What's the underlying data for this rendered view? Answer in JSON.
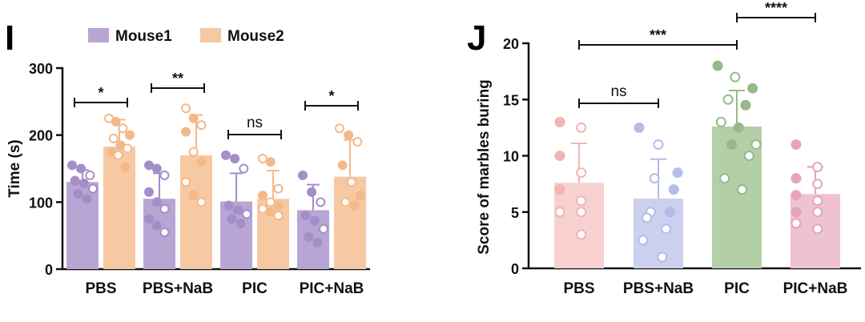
{
  "panels": {
    "left_letter": "I",
    "right_letter": "J"
  },
  "chart_data": [
    {
      "type": "bar",
      "id": "panel-i",
      "categories": [
        "PBS",
        "PBS+NaB",
        "PIC",
        "PIC+NaB"
      ],
      "ylabel": "Time (s)",
      "xlabel": "",
      "ylim": [
        0,
        300
      ],
      "yticks": [
        0,
        100,
        200,
        300
      ],
      "legend": {
        "placement": "top",
        "entries": [
          "Mouse1",
          "Mouse2"
        ]
      },
      "series": [
        {
          "name": "Mouse1",
          "color": "#b8a5d4",
          "dot_color": "#a48ec8",
          "values": [
            130,
            105,
            101,
            88
          ],
          "errors": [
            18,
            38,
            42,
            38
          ],
          "points": [
            [
              155,
              150,
              140,
              132,
              128,
              120,
              112,
              105
            ],
            [
              155,
              150,
              140,
              115,
              100,
              90,
              75,
              65,
              55
            ],
            [
              170,
              165,
              150,
              95,
              88,
              82,
              75,
              68
            ],
            [
              140,
              115,
              100,
              80,
              72,
              60,
              48,
              40
            ]
          ]
        },
        {
          "name": "Mouse2",
          "color": "#f7c9a3",
          "dot_color": "#f4b989",
          "values": [
            183,
            170,
            105,
            138
          ],
          "errors": [
            40,
            60,
            42,
            55
          ],
          "points": [
            [
              225,
              220,
              210,
              200,
              195,
              185,
              180,
              175,
              170,
              152
            ],
            [
              240,
              225,
              215,
              205,
              175,
              160,
              130,
              110,
              100
            ],
            [
              165,
              160,
              120,
              110,
              100,
              95,
              90,
              85,
              80
            ],
            [
              210,
              200,
              190,
              155,
              130,
              110,
              100,
              95
            ]
          ]
        }
      ],
      "significance": [
        "*",
        "**",
        "ns",
        "*"
      ]
    },
    {
      "type": "bar",
      "id": "panel-j",
      "categories": [
        "PBS",
        "PBS+NaB",
        "PIC",
        "PIC+NaB"
      ],
      "ylabel": "Score of marbles buring",
      "xlabel": "",
      "ylim": [
        0,
        20
      ],
      "yticks": [
        0,
        5,
        10,
        15,
        20
      ],
      "values": [
        7.6,
        6.2,
        12.6,
        6.6
      ],
      "errors": [
        3.5,
        3.5,
        3.2,
        2.4
      ],
      "colors": [
        "#f8d0d0",
        "#cbd0ee",
        "#b3cfa8",
        "#eec2d2"
      ],
      "dot_colors": [
        "#f2b4b4",
        "#b4bce8",
        "#95ba8a",
        "#e6a4bb"
      ],
      "points": [
        [
          13,
          12.5,
          10,
          8.5,
          7,
          6,
          5,
          5,
          5,
          3
        ],
        [
          12.5,
          11,
          8.5,
          8,
          7,
          5,
          5,
          4.5,
          3.5,
          2.5,
          1
        ],
        [
          18,
          17,
          16,
          15,
          14.5,
          13,
          12.5,
          11,
          11,
          10,
          8,
          7
        ],
        [
          11,
          9,
          8,
          7.5,
          6.5,
          6,
          5,
          5,
          4,
          3.5
        ]
      ],
      "comparisons": [
        {
          "from": 0,
          "to": 1,
          "label": "ns",
          "level": 14.8
        },
        {
          "from": 0,
          "to": 2,
          "label": "***",
          "level": 19.5
        },
        {
          "from": 2,
          "to": 3,
          "label": "****",
          "level": 22.5
        }
      ]
    }
  ]
}
